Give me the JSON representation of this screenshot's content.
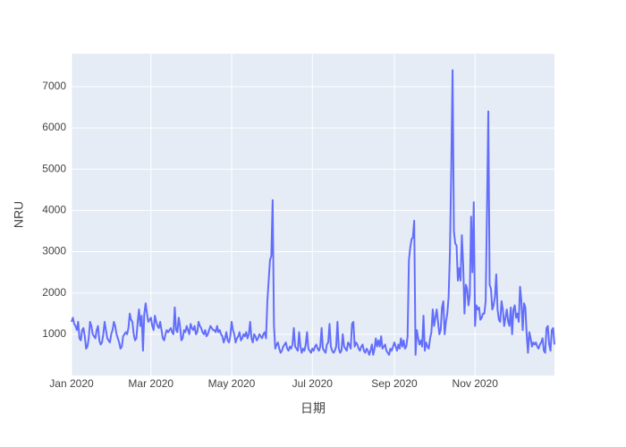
{
  "chart_data": {
    "type": "line",
    "x_label": "日期",
    "y_label": "NRU",
    "color": "#636efa",
    "grid": true,
    "xlim": [
      "2020-01-01",
      "2020-12-31"
    ],
    "xticks": [
      {
        "value": "2020-01-01",
        "label": "Jan 2020"
      },
      {
        "value": "2020-03-01",
        "label": "Mar 2020"
      },
      {
        "value": "2020-05-01",
        "label": "May 2020"
      },
      {
        "value": "2020-07-01",
        "label": "Jul 2020"
      },
      {
        "value": "2020-09-01",
        "label": "Sep 2020"
      },
      {
        "value": "2020-11-01",
        "label": "Nov 2020"
      }
    ],
    "ylim": [
      0,
      7800
    ],
    "yticks": [
      1000,
      2000,
      3000,
      4000,
      5000,
      6000,
      7000
    ],
    "x": [
      "2020-01-01",
      "2020-01-02",
      "2020-01-03",
      "2020-01-04",
      "2020-01-05",
      "2020-01-06",
      "2020-01-07",
      "2020-01-08",
      "2020-01-09",
      "2020-01-10",
      "2020-01-11",
      "2020-01-12",
      "2020-01-13",
      "2020-01-14",
      "2020-01-15",
      "2020-01-16",
      "2020-01-17",
      "2020-01-18",
      "2020-01-19",
      "2020-01-20",
      "2020-01-21",
      "2020-01-22",
      "2020-01-23",
      "2020-01-24",
      "2020-01-25",
      "2020-01-26",
      "2020-01-27",
      "2020-01-28",
      "2020-01-29",
      "2020-01-30",
      "2020-01-31",
      "2020-02-01",
      "2020-02-02",
      "2020-02-03",
      "2020-02-04",
      "2020-02-05",
      "2020-02-06",
      "2020-02-07",
      "2020-02-08",
      "2020-02-09",
      "2020-02-10",
      "2020-02-11",
      "2020-02-12",
      "2020-02-13",
      "2020-02-14",
      "2020-02-15",
      "2020-02-16",
      "2020-02-17",
      "2020-02-18",
      "2020-02-19",
      "2020-02-20",
      "2020-02-21",
      "2020-02-22",
      "2020-02-23",
      "2020-02-24",
      "2020-02-25",
      "2020-02-26",
      "2020-02-27",
      "2020-02-28",
      "2020-02-29",
      "2020-03-01",
      "2020-03-02",
      "2020-03-03",
      "2020-03-04",
      "2020-03-05",
      "2020-03-06",
      "2020-03-07",
      "2020-03-08",
      "2020-03-09",
      "2020-03-10",
      "2020-03-11",
      "2020-03-12",
      "2020-03-13",
      "2020-03-14",
      "2020-03-15",
      "2020-03-16",
      "2020-03-17",
      "2020-03-18",
      "2020-03-19",
      "2020-03-20",
      "2020-03-21",
      "2020-03-22",
      "2020-03-23",
      "2020-03-24",
      "2020-03-25",
      "2020-03-26",
      "2020-03-27",
      "2020-03-28",
      "2020-03-29",
      "2020-03-30",
      "2020-03-31",
      "2020-04-01",
      "2020-04-02",
      "2020-04-03",
      "2020-04-04",
      "2020-04-05",
      "2020-04-06",
      "2020-04-07",
      "2020-04-08",
      "2020-04-09",
      "2020-04-10",
      "2020-04-11",
      "2020-04-12",
      "2020-04-13",
      "2020-04-14",
      "2020-04-15",
      "2020-04-16",
      "2020-04-17",
      "2020-04-18",
      "2020-04-19",
      "2020-04-20",
      "2020-04-21",
      "2020-04-22",
      "2020-04-23",
      "2020-04-24",
      "2020-04-25",
      "2020-04-26",
      "2020-04-27",
      "2020-04-28",
      "2020-04-29",
      "2020-04-30",
      "2020-05-01",
      "2020-05-02",
      "2020-05-03",
      "2020-05-04",
      "2020-05-05",
      "2020-05-06",
      "2020-05-07",
      "2020-05-08",
      "2020-05-09",
      "2020-05-10",
      "2020-05-11",
      "2020-05-12",
      "2020-05-13",
      "2020-05-14",
      "2020-05-15",
      "2020-05-16",
      "2020-05-17",
      "2020-05-18",
      "2020-05-19",
      "2020-05-20",
      "2020-05-21",
      "2020-05-22",
      "2020-05-23",
      "2020-05-24",
      "2020-05-25",
      "2020-05-26",
      "2020-05-27",
      "2020-05-28",
      "2020-05-29",
      "2020-05-30",
      "2020-05-31",
      "2020-06-01",
      "2020-06-02",
      "2020-06-03",
      "2020-06-04",
      "2020-06-05",
      "2020-06-06",
      "2020-06-07",
      "2020-06-08",
      "2020-06-09",
      "2020-06-10",
      "2020-06-11",
      "2020-06-12",
      "2020-06-13",
      "2020-06-14",
      "2020-06-15",
      "2020-06-16",
      "2020-06-17",
      "2020-06-18",
      "2020-06-19",
      "2020-06-20",
      "2020-06-21",
      "2020-06-22",
      "2020-06-23",
      "2020-06-24",
      "2020-06-25",
      "2020-06-26",
      "2020-06-27",
      "2020-06-28",
      "2020-06-29",
      "2020-06-30",
      "2020-07-01",
      "2020-07-02",
      "2020-07-03",
      "2020-07-04",
      "2020-07-05",
      "2020-07-06",
      "2020-07-07",
      "2020-07-08",
      "2020-07-09",
      "2020-07-10",
      "2020-07-11",
      "2020-07-12",
      "2020-07-13",
      "2020-07-14",
      "2020-07-15",
      "2020-07-16",
      "2020-07-17",
      "2020-07-18",
      "2020-07-19",
      "2020-07-20",
      "2020-07-21",
      "2020-07-22",
      "2020-07-23",
      "2020-07-24",
      "2020-07-25",
      "2020-07-26",
      "2020-07-27",
      "2020-07-28",
      "2020-07-29",
      "2020-07-30",
      "2020-07-31",
      "2020-08-01",
      "2020-08-02",
      "2020-08-03",
      "2020-08-04",
      "2020-08-05",
      "2020-08-06",
      "2020-08-07",
      "2020-08-08",
      "2020-08-09",
      "2020-08-10",
      "2020-08-11",
      "2020-08-12",
      "2020-08-13",
      "2020-08-14",
      "2020-08-15",
      "2020-08-16",
      "2020-08-17",
      "2020-08-18",
      "2020-08-19",
      "2020-08-20",
      "2020-08-21",
      "2020-08-22",
      "2020-08-23",
      "2020-08-24",
      "2020-08-25",
      "2020-08-26",
      "2020-08-27",
      "2020-08-28",
      "2020-08-29",
      "2020-08-30",
      "2020-08-31",
      "2020-09-01",
      "2020-09-02",
      "2020-09-03",
      "2020-09-04",
      "2020-09-05",
      "2020-09-06",
      "2020-09-07",
      "2020-09-08",
      "2020-09-09",
      "2020-09-10",
      "2020-09-11",
      "2020-09-12",
      "2020-09-13",
      "2020-09-14",
      "2020-09-15",
      "2020-09-16",
      "2020-09-17",
      "2020-09-18",
      "2020-09-19",
      "2020-09-20",
      "2020-09-21",
      "2020-09-22",
      "2020-09-23",
      "2020-09-24",
      "2020-09-25",
      "2020-09-26",
      "2020-09-27",
      "2020-09-28",
      "2020-09-29",
      "2020-09-30",
      "2020-10-01",
      "2020-10-02",
      "2020-10-03",
      "2020-10-04",
      "2020-10-05",
      "2020-10-06",
      "2020-10-07",
      "2020-10-08",
      "2020-10-09",
      "2020-10-10",
      "2020-10-11",
      "2020-10-12",
      "2020-10-13",
      "2020-10-14",
      "2020-10-15",
      "2020-10-16",
      "2020-10-17",
      "2020-10-18",
      "2020-10-19",
      "2020-10-20",
      "2020-10-21",
      "2020-10-22",
      "2020-10-23",
      "2020-10-24",
      "2020-10-25",
      "2020-10-26",
      "2020-10-27",
      "2020-10-28",
      "2020-10-29",
      "2020-10-30",
      "2020-10-31",
      "2020-11-01",
      "2020-11-02",
      "2020-11-03",
      "2020-11-04",
      "2020-11-05",
      "2020-11-06",
      "2020-11-07",
      "2020-11-08",
      "2020-11-09",
      "2020-11-10",
      "2020-11-11",
      "2020-11-12",
      "2020-11-13",
      "2020-11-14",
      "2020-11-15",
      "2020-11-16",
      "2020-11-17",
      "2020-11-18",
      "2020-11-19",
      "2020-11-20",
      "2020-11-21",
      "2020-11-22",
      "2020-11-23",
      "2020-11-24",
      "2020-11-25",
      "2020-11-26",
      "2020-11-27",
      "2020-11-28",
      "2020-11-29",
      "2020-11-30",
      "2020-12-01",
      "2020-12-02",
      "2020-12-03",
      "2020-12-04",
      "2020-12-05",
      "2020-12-06",
      "2020-12-07",
      "2020-12-08",
      "2020-12-09",
      "2020-12-10",
      "2020-12-11",
      "2020-12-12",
      "2020-12-13",
      "2020-12-14",
      "2020-12-15",
      "2020-12-16",
      "2020-12-17",
      "2020-12-18",
      "2020-12-19",
      "2020-12-20",
      "2020-12-21",
      "2020-12-22",
      "2020-12-23",
      "2020-12-24",
      "2020-12-25",
      "2020-12-26",
      "2020-12-27",
      "2020-12-28",
      "2020-12-29",
      "2020-12-30",
      "2020-12-31"
    ],
    "values": [
      1300,
      1400,
      1250,
      1200,
      1100,
      1300,
      900,
      850,
      1100,
      1150,
      950,
      650,
      700,
      900,
      1300,
      1200,
      1000,
      950,
      900,
      1100,
      1200,
      850,
      750,
      800,
      1000,
      1300,
      1100,
      900,
      850,
      800,
      1000,
      1100,
      1300,
      1200,
      1000,
      900,
      800,
      650,
      700,
      950,
      1000,
      1050,
      1000,
      1150,
      1500,
      1350,
      1300,
      1000,
      850,
      900,
      1300,
      1600,
      1200,
      1450,
      600,
      1500,
      1750,
      1500,
      1300,
      1350,
      1400,
      1200,
      1100,
      1450,
      1300,
      1200,
      1150,
      1300,
      1100,
      900,
      850,
      1000,
      1100,
      1050,
      1100,
      1150,
      1050,
      1000,
      1650,
      1100,
      1050,
      1400,
      1200,
      850,
      900,
      1100,
      1050,
      1200,
      1100,
      1000,
      1250,
      1150,
      1100,
      1200,
      1000,
      1050,
      1300,
      1200,
      1150,
      1050,
      1000,
      1100,
      950,
      1000,
      1100,
      1200,
      1150,
      1100,
      1100,
      1050,
      1200,
      1050,
      1100,
      1000,
      950,
      800,
      900,
      1050,
      850,
      800,
      950,
      1300,
      1100,
      1000,
      800,
      900,
      950,
      1050,
      850,
      900,
      1000,
      950,
      1050,
      900,
      1000,
      1300,
      900,
      800,
      1000,
      950,
      850,
      900,
      1000,
      950,
      900,
      1000,
      1050,
      900,
      1800,
      2300,
      2800,
      2900,
      4250,
      1200,
      650,
      750,
      800,
      650,
      550,
      600,
      700,
      750,
      800,
      650,
      600,
      700,
      650,
      750,
      1150,
      700,
      650,
      600,
      1050,
      700,
      550,
      650,
      600,
      750,
      1050,
      650,
      600,
      550,
      650,
      600,
      700,
      750,
      650,
      600,
      700,
      1150,
      650,
      600,
      550,
      750,
      800,
      1250,
      700,
      600,
      550,
      600,
      700,
      1300,
      650,
      550,
      600,
      1000,
      700,
      650,
      600,
      800,
      750,
      650,
      1250,
      1300,
      700,
      800,
      750,
      650,
      600,
      700,
      750,
      600,
      550,
      650,
      600,
      500,
      600,
      750,
      500,
      650,
      900,
      700,
      850,
      700,
      950,
      650,
      700,
      750,
      600,
      550,
      500,
      650,
      600,
      700,
      800,
      700,
      600,
      750,
      650,
      900,
      700,
      850,
      650,
      700,
      950,
      2800,
      3100,
      3300,
      3350,
      3750,
      500,
      1100,
      900,
      750,
      850,
      700,
      1450,
      600,
      800,
      700,
      650,
      900,
      1050,
      1600,
      1200,
      1400,
      1600,
      1300,
      1000,
      1100,
      1650,
      1800,
      1000,
      1300,
      1500,
      1900,
      3000,
      5000,
      7400,
      3500,
      3200,
      3150,
      2300,
      2600,
      2300,
      3400,
      2700,
      1500,
      2200,
      2100,
      1700,
      1950,
      3850,
      2500,
      4200,
      1200,
      1700,
      1600,
      1650,
      1350,
      1400,
      1500,
      1500,
      1800,
      4000,
      6400,
      2200,
      2100,
      1600,
      1700,
      1900,
      2450,
      1600,
      1350,
      1300,
      1800,
      1600,
      1200,
      1400,
      1600,
      1300,
      1200,
      1650,
      1000,
      1600,
      1700,
      1400,
      1500,
      1300,
      2150,
      1800,
      1100,
      1750,
      1650,
      1000,
      550,
      1050,
      900,
      700,
      800,
      750,
      800,
      700,
      650,
      750,
      800,
      900,
      600,
      550,
      1150,
      1200,
      750,
      600,
      1100,
      1150,
      750
    ]
  }
}
